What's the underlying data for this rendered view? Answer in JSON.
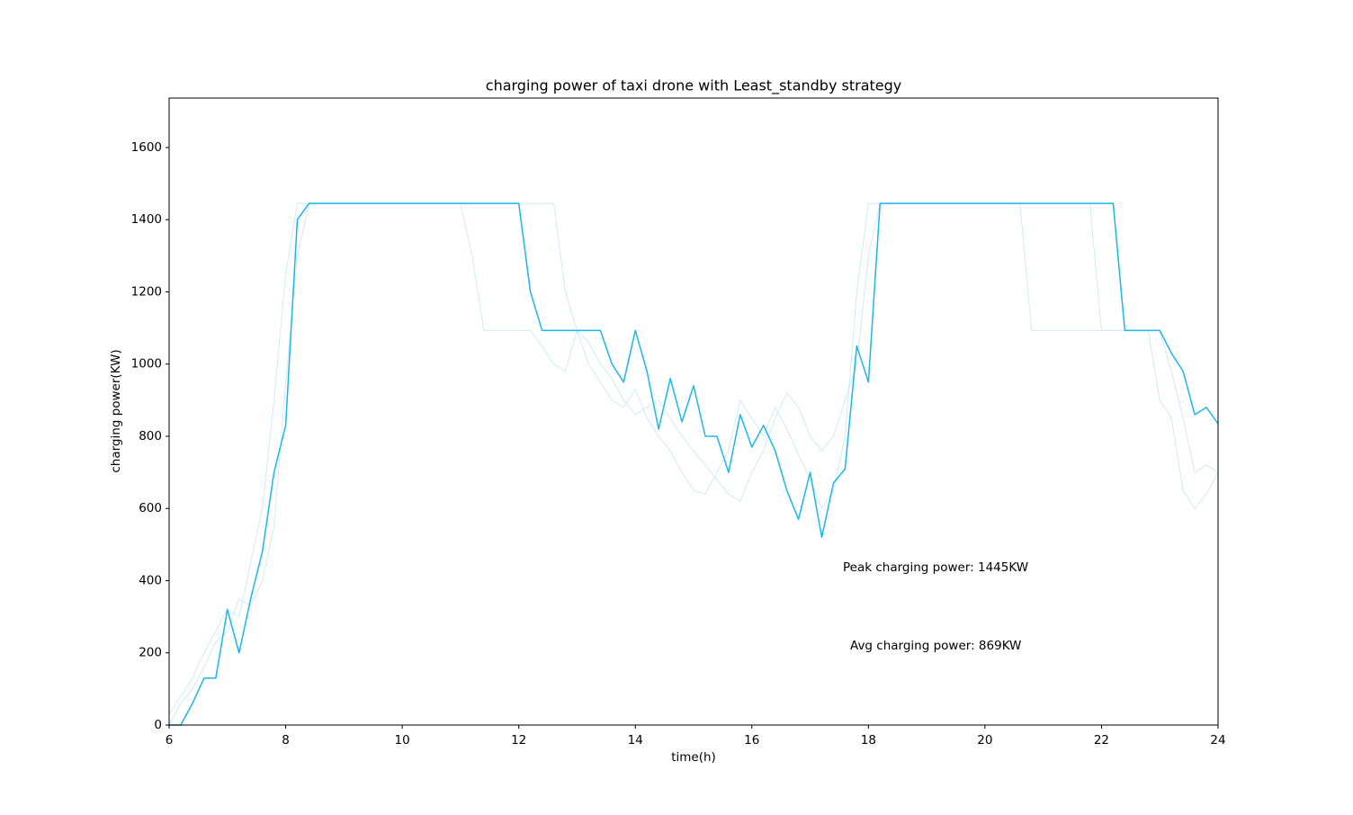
{
  "chart_data": {
    "type": "line",
    "title": "charging power of taxi drone with Least_standby strategy",
    "x_label": "time(h)",
    "y_label": "charging power(KW)",
    "annotations": [
      "Peak charging power: 1445KW",
      "Avg charging power: 869KW"
    ],
    "x": [
      6,
      6.2,
      6.4,
      6.6,
      6.8,
      7,
      7.2,
      7.4,
      7.6,
      7.8,
      8,
      8.2,
      8.4,
      8.6,
      8.8,
      9,
      9.2,
      9.4,
      9.6,
      9.8,
      10,
      10.2,
      10.4,
      10.6,
      10.8,
      11,
      11.2,
      11.4,
      11.6,
      11.8,
      12,
      12.2,
      12.4,
      12.6,
      12.8,
      13,
      13.2,
      13.4,
      13.6,
      13.8,
      14,
      14.2,
      14.4,
      14.6,
      14.8,
      15,
      15.2,
      15.4,
      15.6,
      15.8,
      16,
      16.2,
      16.4,
      16.6,
      16.8,
      17,
      17.2,
      17.4,
      17.6,
      17.8,
      18,
      18.2,
      18.4,
      18.6,
      18.8,
      19,
      19.2,
      19.4,
      19.6,
      19.8,
      20,
      20.2,
      20.4,
      20.6,
      20.8,
      21,
      21.2,
      21.4,
      21.6,
      21.8,
      22,
      22.2,
      22.4,
      22.6,
      22.8,
      23,
      23.2,
      23.4,
      23.6,
      23.8,
      24
    ],
    "series": [
      {
        "color": "#d2eaf8",
        "values": [
          30,
          80,
          130,
          200,
          260,
          320,
          300,
          450,
          600,
          900,
          1250,
          1445,
          1445,
          1445,
          1445,
          1445,
          1445,
          1445,
          1445,
          1445,
          1445,
          1445,
          1445,
          1445,
          1445,
          1445,
          1300,
          1093,
          1093,
          1093,
          1093,
          1093,
          1050,
          1000,
          980,
          1093,
          1000,
          950,
          900,
          880,
          930,
          850,
          800,
          760,
          700,
          650,
          640,
          700,
          760,
          900,
          850,
          800,
          880,
          820,
          750,
          680,
          600,
          650,
          800,
          1200,
          1445,
          1445,
          1445,
          1445,
          1445,
          1445,
          1445,
          1445,
          1445,
          1445,
          1445,
          1445,
          1445,
          1445,
          1093,
          1093,
          1093,
          1093,
          1093,
          1093,
          1093,
          1093,
          1093,
          1093,
          1093,
          1093,
          980,
          850,
          700,
          720,
          700
        ]
      },
      {
        "color": "#d2eaf8",
        "values": [
          0,
          60,
          100,
          160,
          230,
          260,
          350,
          330,
          400,
          550,
          950,
          1300,
          1445,
          1445,
          1445,
          1445,
          1445,
          1445,
          1445,
          1445,
          1445,
          1445,
          1445,
          1445,
          1445,
          1445,
          1445,
          1445,
          1445,
          1445,
          1445,
          1445,
          1445,
          1445,
          1200,
          1093,
          1060,
          1000,
          960,
          900,
          860,
          880,
          900,
          850,
          800,
          760,
          720,
          680,
          640,
          620,
          700,
          760,
          850,
          920,
          880,
          800,
          760,
          800,
          900,
          1000,
          1300,
          1445,
          1445,
          1445,
          1445,
          1445,
          1445,
          1445,
          1445,
          1445,
          1445,
          1445,
          1445,
          1445,
          1445,
          1445,
          1445,
          1445,
          1445,
          1445,
          1093,
          1093,
          1093,
          1093,
          1093,
          900,
          850,
          650,
          600,
          640,
          700
        ]
      },
      {
        "color": "#1ab8ea",
        "values": [
          0,
          0,
          60,
          130,
          130,
          320,
          200,
          350,
          480,
          700,
          830,
          1400,
          1445,
          1445,
          1445,
          1445,
          1445,
          1445,
          1445,
          1445,
          1445,
          1445,
          1445,
          1445,
          1445,
          1445,
          1445,
          1445,
          1445,
          1445,
          1445,
          1200,
          1093,
          1093,
          1093,
          1093,
          1093,
          1093,
          1000,
          950,
          1093,
          980,
          820,
          960,
          840,
          940,
          800,
          800,
          700,
          860,
          770,
          830,
          760,
          650,
          570,
          700,
          520,
          670,
          710,
          1050,
          950,
          1445,
          1445,
          1445,
          1445,
          1445,
          1445,
          1445,
          1445,
          1445,
          1445,
          1445,
          1445,
          1445,
          1445,
          1445,
          1445,
          1445,
          1445,
          1445,
          1445,
          1445,
          1093,
          1093,
          1093,
          1093,
          1030,
          980,
          860,
          880,
          835
        ]
      }
    ],
    "xlim": [
      6,
      24
    ],
    "xticks": [
      6,
      8,
      10,
      12,
      14,
      16,
      18,
      20,
      22,
      24
    ],
    "ylim": [
      0,
      1737
    ],
    "yticks": [
      0,
      200,
      400,
      600,
      800,
      1000,
      1200,
      1400,
      1600
    ]
  }
}
